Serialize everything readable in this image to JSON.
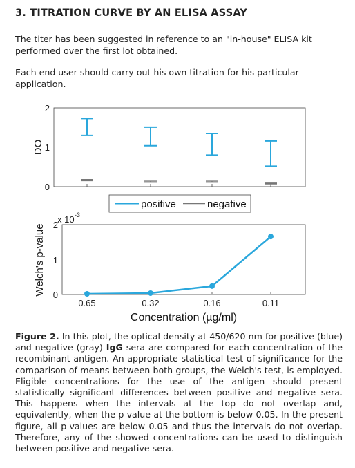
{
  "section": {
    "title": "3. TITRATION CURVE BY AN ELISA ASSAY",
    "paragraph1": "The titer has been suggested in reference to an \"in-house\" ELISA kit performed over the first lot obtained.",
    "paragraph2": "Each end user should carry out his own titration for his particular application."
  },
  "caption": {
    "label": "Figure 2.",
    "text_a": " In this plot, the optical density at 450/620 nm for positive (blue) and negative (gray) ",
    "bold_term": "IgG",
    "text_b": " sera are compared for each concentration of the recombinant antigen. An appropriate statistical test of significance for the comparison of means between both groups, the Welch's test, is employed. Eligible concentrations for the use of the antigen should present statistically significant differences between positive and negative sera. This happens when the intervals at the top do not overlap and, equivalently, when the p-value at the bottom is below 0.05. In the present figure, all p-values are below 0.05 and thus the intervals do not overlap. Therefore, any of the showed concentrations can be used to distinguish between positive and negative sera."
  },
  "colors": {
    "positive": "#2aa7dc",
    "negative": "#777777",
    "axis": "#444444"
  },
  "chart_data": [
    {
      "type": "errorbar",
      "ylabel": "DO",
      "ylim": [
        0,
        2
      ],
      "yticks": [
        "0",
        "1",
        "2"
      ],
      "categories": [
        "0.65",
        "0.32",
        "0.16",
        "0.11"
      ],
      "series": [
        {
          "name": "positive",
          "low": [
            1.3,
            1.04,
            0.8,
            0.52
          ],
          "high": [
            1.73,
            1.51,
            1.35,
            1.16
          ]
        },
        {
          "name": "negative",
          "low": [
            0.15,
            0.11,
            0.11,
            0.07
          ],
          "high": [
            0.18,
            0.14,
            0.14,
            0.09
          ]
        }
      ],
      "legend": {
        "position": "bottom",
        "entries": [
          "positive",
          "negative"
        ]
      }
    },
    {
      "type": "line",
      "ylabel": "Welch's p-value",
      "xlabel": "Concentration (µg/ml)",
      "exponent_label": "x 10",
      "exponent_power": "-3",
      "ylim": [
        0,
        2
      ],
      "yticks": [
        "0",
        "1",
        "2"
      ],
      "categories": [
        "0.65",
        "0.32",
        "0.16",
        "0.11"
      ],
      "values": [
        0.02,
        0.04,
        0.24,
        1.66
      ]
    }
  ]
}
